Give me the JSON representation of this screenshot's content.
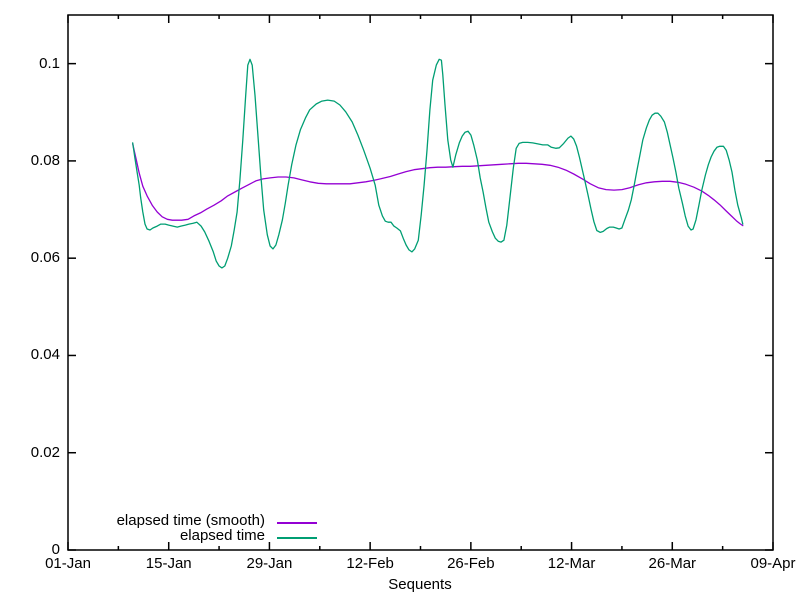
{
  "axes": {
    "xlabel": "Sequents"
  },
  "legend": {
    "items": [
      {
        "label": "elapsed time (smooth)",
        "color": "#9400d3"
      },
      {
        "label": "elapsed time",
        "color": "#009e73"
      }
    ]
  },
  "chart_data": {
    "type": "line",
    "title": "",
    "xlabel": "Sequents",
    "ylabel": "",
    "x_unit": "days since 01-Jan",
    "xlim_days": [
      0,
      98
    ],
    "ylim": [
      0,
      0.11
    ],
    "grid": false,
    "legend_position": "inside bottom-left",
    "background": "#ffffff",
    "border_color": "#000000",
    "x_ticks": [
      {
        "day": 0,
        "label": "01-Jan"
      },
      {
        "day": 14,
        "label": "15-Jan"
      },
      {
        "day": 28,
        "label": "29-Jan"
      },
      {
        "day": 42,
        "label": "12-Feb"
      },
      {
        "day": 56,
        "label": "26-Feb"
      },
      {
        "day": 70,
        "label": "12-Mar"
      },
      {
        "day": 84,
        "label": "26-Mar"
      },
      {
        "day": 98,
        "label": "09-Apr"
      }
    ],
    "x_minor_tick_days": [
      7,
      21,
      35,
      49,
      63,
      77,
      91
    ],
    "y_ticks": [
      {
        "value": 0,
        "label": "0"
      },
      {
        "value": 0.02,
        "label": "0.02"
      },
      {
        "value": 0.04,
        "label": "0.04"
      },
      {
        "value": 0.06,
        "label": "0.06"
      },
      {
        "value": 0.08,
        "label": "0.08"
      },
      {
        "value": 0.1,
        "label": "0.1"
      }
    ],
    "series": [
      {
        "name": "elapsed time (smooth)",
        "color": "#9400d3",
        "points": [
          [
            9.0,
            0.0835
          ],
          [
            9.5,
            0.0802
          ],
          [
            9.9,
            0.0775
          ],
          [
            10.4,
            0.0748
          ],
          [
            11.0,
            0.0728
          ],
          [
            11.7,
            0.0709
          ],
          [
            12.4,
            0.0695
          ],
          [
            13.1,
            0.0685
          ],
          [
            13.8,
            0.068
          ],
          [
            14.5,
            0.0678
          ],
          [
            15.2,
            0.0678
          ],
          [
            15.8,
            0.0678
          ],
          [
            16.7,
            0.068
          ],
          [
            17.5,
            0.0687
          ],
          [
            18.4,
            0.0693
          ],
          [
            19.3,
            0.0701
          ],
          [
            20.3,
            0.0709
          ],
          [
            21.3,
            0.0718
          ],
          [
            22.2,
            0.0728
          ],
          [
            23.2,
            0.0736
          ],
          [
            24.2,
            0.0744
          ],
          [
            25.2,
            0.0752
          ],
          [
            26.1,
            0.0759
          ],
          [
            27.1,
            0.0763
          ],
          [
            28.1,
            0.0765
          ],
          [
            29.2,
            0.0767
          ],
          [
            30.3,
            0.0767
          ],
          [
            31.4,
            0.0765
          ],
          [
            32.5,
            0.0761
          ],
          [
            33.6,
            0.0757
          ],
          [
            34.8,
            0.0754
          ],
          [
            35.9,
            0.0753
          ],
          [
            37.0,
            0.0753
          ],
          [
            38.1,
            0.0753
          ],
          [
            39.2,
            0.0753
          ],
          [
            40.3,
            0.0755
          ],
          [
            41.4,
            0.0757
          ],
          [
            42.5,
            0.076
          ],
          [
            43.7,
            0.0764
          ],
          [
            44.8,
            0.0768
          ],
          [
            45.9,
            0.0773
          ],
          [
            47.0,
            0.0778
          ],
          [
            48.1,
            0.0782
          ],
          [
            49.2,
            0.0784
          ],
          [
            50.3,
            0.0786
          ],
          [
            51.4,
            0.0787
          ],
          [
            52.5,
            0.0787
          ],
          [
            53.7,
            0.0788
          ],
          [
            54.8,
            0.0789
          ],
          [
            55.9,
            0.0789
          ],
          [
            57.0,
            0.079
          ],
          [
            58.1,
            0.0791
          ],
          [
            59.2,
            0.0792
          ],
          [
            60.3,
            0.0793
          ],
          [
            61.4,
            0.0794
          ],
          [
            62.6,
            0.0795
          ],
          [
            63.7,
            0.0795
          ],
          [
            64.8,
            0.0794
          ],
          [
            65.9,
            0.0793
          ],
          [
            67.0,
            0.0791
          ],
          [
            68.1,
            0.0787
          ],
          [
            69.2,
            0.0781
          ],
          [
            70.3,
            0.0773
          ],
          [
            71.5,
            0.0763
          ],
          [
            72.6,
            0.0753
          ],
          [
            73.7,
            0.0745
          ],
          [
            74.8,
            0.0741
          ],
          [
            75.9,
            0.074
          ],
          [
            77.0,
            0.0741
          ],
          [
            78.1,
            0.0745
          ],
          [
            79.3,
            0.0751
          ],
          [
            80.4,
            0.0755
          ],
          [
            81.5,
            0.0757
          ],
          [
            82.6,
            0.0758
          ],
          [
            83.7,
            0.0758
          ],
          [
            84.8,
            0.0756
          ],
          [
            85.9,
            0.0752
          ],
          [
            87.0,
            0.0746
          ],
          [
            88.1,
            0.0738
          ],
          [
            89.0,
            0.0729
          ],
          [
            89.8,
            0.072
          ],
          [
            90.6,
            0.071
          ],
          [
            91.5,
            0.0697
          ],
          [
            92.2,
            0.0687
          ],
          [
            92.9,
            0.0677
          ],
          [
            93.4,
            0.0671
          ],
          [
            93.8,
            0.0667
          ]
        ]
      },
      {
        "name": "elapsed time",
        "color": "#009e73",
        "points": [
          [
            9.0,
            0.0837
          ],
          [
            9.3,
            0.0806
          ],
          [
            9.6,
            0.0777
          ],
          [
            9.9,
            0.075
          ],
          [
            10.1,
            0.0724
          ],
          [
            10.4,
            0.0695
          ],
          [
            10.7,
            0.067
          ],
          [
            11.0,
            0.066
          ],
          [
            11.4,
            0.0658
          ],
          [
            11.8,
            0.0662
          ],
          [
            12.4,
            0.0666
          ],
          [
            12.9,
            0.067
          ],
          [
            13.5,
            0.067
          ],
          [
            14.0,
            0.0668
          ],
          [
            14.6,
            0.0666
          ],
          [
            15.2,
            0.0664
          ],
          [
            15.7,
            0.0666
          ],
          [
            16.3,
            0.0668
          ],
          [
            16.8,
            0.067
          ],
          [
            17.4,
            0.0672
          ],
          [
            17.9,
            0.0674
          ],
          [
            18.5,
            0.0666
          ],
          [
            19.0,
            0.0654
          ],
          [
            19.6,
            0.0635
          ],
          [
            20.2,
            0.0613
          ],
          [
            20.6,
            0.0594
          ],
          [
            21.0,
            0.0584
          ],
          [
            21.4,
            0.058
          ],
          [
            21.8,
            0.0584
          ],
          [
            22.2,
            0.06
          ],
          [
            22.7,
            0.0625
          ],
          [
            23.1,
            0.0658
          ],
          [
            23.5,
            0.0695
          ],
          [
            23.9,
            0.0761
          ],
          [
            24.3,
            0.0843
          ],
          [
            24.7,
            0.0935
          ],
          [
            25.0,
            0.0997
          ],
          [
            25.3,
            0.1009
          ],
          [
            25.6,
            0.0997
          ],
          [
            26.0,
            0.0935
          ],
          [
            26.4,
            0.0853
          ],
          [
            26.8,
            0.0771
          ],
          [
            27.2,
            0.0699
          ],
          [
            27.7,
            0.0648
          ],
          [
            28.1,
            0.0625
          ],
          [
            28.5,
            0.0619
          ],
          [
            28.9,
            0.0627
          ],
          [
            29.3,
            0.0648
          ],
          [
            29.8,
            0.0679
          ],
          [
            30.2,
            0.0713
          ],
          [
            30.6,
            0.075
          ],
          [
            31.1,
            0.0792
          ],
          [
            31.7,
            0.0833
          ],
          [
            32.3,
            0.0864
          ],
          [
            33.0,
            0.0888
          ],
          [
            33.6,
            0.0905
          ],
          [
            34.5,
            0.0917
          ],
          [
            35.3,
            0.0923
          ],
          [
            36.1,
            0.0925
          ],
          [
            37.0,
            0.0923
          ],
          [
            37.8,
            0.0915
          ],
          [
            38.6,
            0.0901
          ],
          [
            39.5,
            0.088
          ],
          [
            40.3,
            0.0853
          ],
          [
            41.1,
            0.0822
          ],
          [
            42.0,
            0.0785
          ],
          [
            42.7,
            0.075
          ],
          [
            43.2,
            0.0709
          ],
          [
            43.7,
            0.0687
          ],
          [
            44.1,
            0.0676
          ],
          [
            44.5,
            0.0674
          ],
          [
            44.9,
            0.0674
          ],
          [
            45.3,
            0.0666
          ],
          [
            45.7,
            0.0662
          ],
          [
            46.2,
            0.0656
          ],
          [
            46.6,
            0.0641
          ],
          [
            47.0,
            0.0627
          ],
          [
            47.4,
            0.0617
          ],
          [
            47.8,
            0.0613
          ],
          [
            48.2,
            0.0619
          ],
          [
            48.7,
            0.0637
          ],
          [
            49.1,
            0.0689
          ],
          [
            49.5,
            0.075
          ],
          [
            49.9,
            0.0822
          ],
          [
            50.3,
            0.0905
          ],
          [
            50.7,
            0.0966
          ],
          [
            51.2,
            0.0997
          ],
          [
            51.6,
            0.1009
          ],
          [
            51.9,
            0.1007
          ],
          [
            52.1,
            0.0977
          ],
          [
            52.4,
            0.0915
          ],
          [
            52.8,
            0.0843
          ],
          [
            53.2,
            0.0802
          ],
          [
            53.5,
            0.0787
          ],
          [
            53.9,
            0.0812
          ],
          [
            54.4,
            0.0837
          ],
          [
            54.8,
            0.0851
          ],
          [
            55.2,
            0.0859
          ],
          [
            55.6,
            0.0861
          ],
          [
            56.0,
            0.0853
          ],
          [
            56.4,
            0.0833
          ],
          [
            56.9,
            0.0802
          ],
          [
            57.3,
            0.0765
          ],
          [
            57.7,
            0.0736
          ],
          [
            58.1,
            0.0703
          ],
          [
            58.5,
            0.0674
          ],
          [
            59.0,
            0.0654
          ],
          [
            59.4,
            0.0641
          ],
          [
            59.8,
            0.0635
          ],
          [
            60.2,
            0.0633
          ],
          [
            60.6,
            0.0637
          ],
          [
            61.0,
            0.0668
          ],
          [
            61.4,
            0.072
          ],
          [
            61.9,
            0.0785
          ],
          [
            62.3,
            0.0826
          ],
          [
            62.7,
            0.0836
          ],
          [
            63.2,
            0.0838
          ],
          [
            63.9,
            0.0838
          ],
          [
            64.6,
            0.0837
          ],
          [
            65.3,
            0.0835
          ],
          [
            66.0,
            0.0833
          ],
          [
            66.7,
            0.0833
          ],
          [
            67.2,
            0.0828
          ],
          [
            67.8,
            0.0826
          ],
          [
            68.3,
            0.0827
          ],
          [
            68.9,
            0.0836
          ],
          [
            69.5,
            0.0847
          ],
          [
            69.9,
            0.0851
          ],
          [
            70.3,
            0.0845
          ],
          [
            70.7,
            0.083
          ],
          [
            71.1,
            0.0807
          ],
          [
            71.5,
            0.0781
          ],
          [
            71.9,
            0.0756
          ],
          [
            72.3,
            0.0729
          ],
          [
            72.7,
            0.0701
          ],
          [
            73.1,
            0.0675
          ],
          [
            73.5,
            0.0657
          ],
          [
            74.0,
            0.0653
          ],
          [
            74.4,
            0.0655
          ],
          [
            74.9,
            0.0661
          ],
          [
            75.3,
            0.0664
          ],
          [
            75.8,
            0.0664
          ],
          [
            76.2,
            0.0662
          ],
          [
            76.6,
            0.066
          ],
          [
            77.0,
            0.0662
          ],
          [
            77.4,
            0.0679
          ],
          [
            77.9,
            0.0699
          ],
          [
            78.3,
            0.072
          ],
          [
            78.7,
            0.075
          ],
          [
            79.1,
            0.0781
          ],
          [
            79.5,
            0.0812
          ],
          [
            79.9,
            0.0843
          ],
          [
            80.4,
            0.0868
          ],
          [
            80.8,
            0.0884
          ],
          [
            81.2,
            0.0894
          ],
          [
            81.6,
            0.0898
          ],
          [
            82.0,
            0.0898
          ],
          [
            82.4,
            0.0892
          ],
          [
            82.9,
            0.088
          ],
          [
            83.3,
            0.0859
          ],
          [
            83.7,
            0.0833
          ],
          [
            84.1,
            0.0806
          ],
          [
            84.5,
            0.0777
          ],
          [
            84.9,
            0.0744
          ],
          [
            85.4,
            0.0713
          ],
          [
            85.8,
            0.0687
          ],
          [
            86.2,
            0.0666
          ],
          [
            86.6,
            0.0658
          ],
          [
            86.9,
            0.066
          ],
          [
            87.3,
            0.0679
          ],
          [
            87.7,
            0.0709
          ],
          [
            88.1,
            0.074
          ],
          [
            88.6,
            0.0771
          ],
          [
            89.0,
            0.0792
          ],
          [
            89.4,
            0.0808
          ],
          [
            89.8,
            0.082
          ],
          [
            90.2,
            0.0828
          ],
          [
            90.6,
            0.083
          ],
          [
            91.1,
            0.083
          ],
          [
            91.5,
            0.0822
          ],
          [
            91.9,
            0.0802
          ],
          [
            92.3,
            0.0777
          ],
          [
            92.7,
            0.074
          ],
          [
            93.1,
            0.0709
          ],
          [
            93.6,
            0.0683
          ],
          [
            93.8,
            0.067
          ]
        ]
      }
    ]
  }
}
